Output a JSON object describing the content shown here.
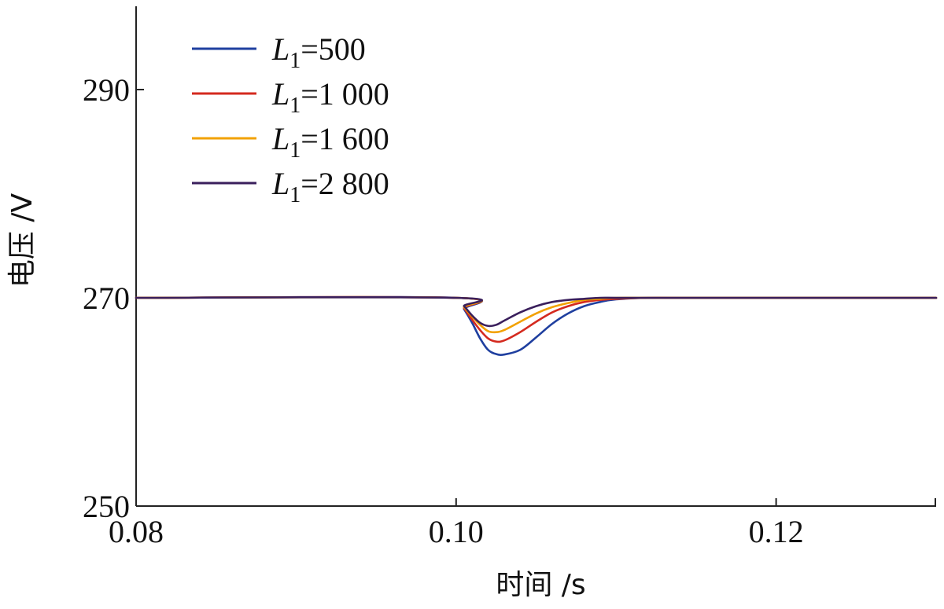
{
  "chart_data": {
    "type": "line",
    "xlabel": "时间 /s",
    "ylabel": "电压 /V",
    "xlim": [
      0.08,
      0.13
    ],
    "ylim": [
      250,
      298
    ],
    "x_ticks": [
      0.08,
      0.1,
      0.12
    ],
    "x_tick_labels": [
      "0.08",
      "0.10",
      "0.12"
    ],
    "y_ticks": [
      250,
      270,
      290
    ],
    "y_tick_labels": [
      "250",
      "270",
      "290"
    ],
    "grid": false,
    "legend_position": "top-left",
    "series": [
      {
        "name": "L1=500",
        "legend": {
          "symbol": "L",
          "subscript": "1",
          "value": "=500"
        },
        "color": "#1f3f9f",
        "x": [
          0.08,
          0.1,
          0.1005,
          0.101,
          0.1015,
          0.102,
          0.1025,
          0.103,
          0.104,
          0.105,
          0.106,
          0.107,
          0.108,
          0.109,
          0.11,
          0.112,
          0.115,
          0.13
        ],
        "y": [
          270,
          270,
          268.9,
          267.6,
          266.1,
          265.0,
          264.6,
          264.55,
          265.0,
          266.2,
          267.5,
          268.5,
          269.2,
          269.6,
          269.85,
          270,
          270,
          270
        ]
      },
      {
        "name": "L1=1 000",
        "legend": {
          "symbol": "L",
          "subscript": "1",
          "value": "=1 000"
        },
        "color": "#d42a1f",
        "x": [
          0.08,
          0.1,
          0.1005,
          0.101,
          0.1015,
          0.102,
          0.1025,
          0.103,
          0.104,
          0.105,
          0.106,
          0.107,
          0.108,
          0.109,
          0.11,
          0.112,
          0.115,
          0.13
        ],
        "y": [
          270,
          270,
          269.0,
          267.9,
          266.9,
          266.1,
          265.8,
          265.9,
          266.7,
          267.7,
          268.6,
          269.2,
          269.6,
          269.8,
          269.9,
          270,
          270,
          270
        ]
      },
      {
        "name": "L1=1 600",
        "legend": {
          "symbol": "L",
          "subscript": "1",
          "value": "=1 600"
        },
        "color": "#f2a100",
        "x": [
          0.08,
          0.1,
          0.1005,
          0.101,
          0.1015,
          0.102,
          0.1025,
          0.103,
          0.104,
          0.105,
          0.106,
          0.107,
          0.108,
          0.109,
          0.11,
          0.112,
          0.115,
          0.13
        ],
        "y": [
          270,
          270,
          269.1,
          268.2,
          267.4,
          266.8,
          266.7,
          266.9,
          267.7,
          268.5,
          269.1,
          269.5,
          269.8,
          269.9,
          270,
          270,
          270,
          270
        ]
      },
      {
        "name": "L1=2 800",
        "legend": {
          "symbol": "L",
          "subscript": "1",
          "value": "=2 800"
        },
        "color": "#3a1f5c",
        "x": [
          0.08,
          0.1,
          0.1005,
          0.101,
          0.1015,
          0.102,
          0.1025,
          0.103,
          0.104,
          0.105,
          0.106,
          0.107,
          0.108,
          0.109,
          0.11,
          0.112,
          0.115,
          0.13
        ],
        "y": [
          270,
          270,
          269.2,
          268.3,
          267.6,
          267.3,
          267.4,
          267.8,
          268.6,
          269.2,
          269.6,
          269.8,
          269.9,
          270,
          270,
          270,
          270,
          270
        ]
      }
    ]
  }
}
